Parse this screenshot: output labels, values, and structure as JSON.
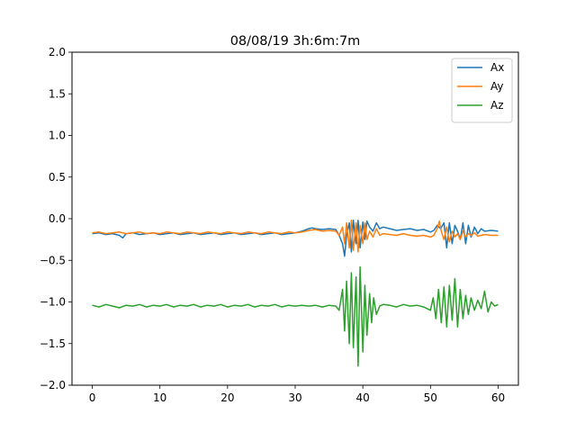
{
  "chart_data": {
    "type": "line",
    "title": "08/08/19 3h:6m:7m",
    "xlabel": "",
    "ylabel": "",
    "xlim": [
      -3,
      63
    ],
    "ylim": [
      -2.0,
      2.0
    ],
    "xticks": [
      0,
      10,
      20,
      30,
      40,
      50,
      60
    ],
    "xtick_labels": [
      "0",
      "10",
      "20",
      "30",
      "40",
      "50",
      "60"
    ],
    "yticks": [
      -2.0,
      -1.5,
      -1.0,
      -0.5,
      0.0,
      0.5,
      1.0,
      1.5,
      2.0
    ],
    "ytick_labels": [
      "−2.0",
      "−1.5",
      "−1.0",
      "−0.5",
      "0.0",
      "0.5",
      "1.0",
      "1.5",
      "2.0"
    ],
    "grid": false,
    "legend_position": "top-right",
    "series": [
      {
        "name": "Ax",
        "color": "#1f77b4",
        "x": [
          0,
          1,
          2,
          3,
          4,
          4.5,
          5,
          6,
          7,
          8,
          9,
          10,
          11,
          12,
          13,
          14,
          15,
          16,
          17,
          18,
          19,
          20,
          21,
          22,
          23,
          24,
          25,
          26,
          27,
          28,
          29,
          30,
          31,
          32,
          32.5,
          33,
          34,
          35,
          36,
          36.5,
          37,
          37.3,
          37.6,
          38,
          38.3,
          38.6,
          39,
          39.3,
          39.6,
          40,
          40.3,
          40.6,
          41,
          41.5,
          42,
          42.5,
          43,
          44,
          45,
          46,
          47,
          48,
          49,
          50,
          50.5,
          51,
          51.5,
          52,
          52.4,
          52.8,
          53.2,
          53.6,
          54,
          54.4,
          54.8,
          55.2,
          55.6,
          56,
          56.5,
          57,
          57.5,
          58,
          59,
          60
        ],
        "y": [
          -0.18,
          -0.17,
          -0.19,
          -0.18,
          -0.2,
          -0.23,
          -0.18,
          -0.17,
          -0.19,
          -0.18,
          -0.17,
          -0.19,
          -0.18,
          -0.17,
          -0.19,
          -0.18,
          -0.17,
          -0.19,
          -0.18,
          -0.17,
          -0.19,
          -0.18,
          -0.17,
          -0.19,
          -0.18,
          -0.17,
          -0.19,
          -0.18,
          -0.17,
          -0.19,
          -0.18,
          -0.17,
          -0.15,
          -0.12,
          -0.11,
          -0.12,
          -0.13,
          -0.12,
          -0.13,
          -0.2,
          -0.3,
          -0.45,
          -0.2,
          -0.05,
          -0.4,
          -0.02,
          -0.3,
          -0.02,
          -0.35,
          -0.04,
          -0.25,
          -0.03,
          -0.1,
          -0.15,
          -0.05,
          -0.12,
          -0.1,
          -0.12,
          -0.14,
          -0.13,
          -0.12,
          -0.14,
          -0.13,
          -0.16,
          -0.14,
          -0.08,
          -0.12,
          -0.05,
          -0.35,
          -0.05,
          -0.3,
          -0.08,
          -0.15,
          -0.25,
          -0.05,
          -0.3,
          -0.08,
          -0.22,
          -0.1,
          -0.18,
          -0.12,
          -0.15,
          -0.14,
          -0.15
        ]
      },
      {
        "name": "Ay",
        "color": "#ff7f0e",
        "x": [
          0,
          1,
          2,
          3,
          4,
          5,
          6,
          7,
          8,
          9,
          10,
          11,
          12,
          13,
          14,
          15,
          16,
          17,
          18,
          19,
          20,
          21,
          22,
          23,
          24,
          25,
          26,
          27,
          28,
          29,
          30,
          31,
          32,
          33,
          34,
          35,
          36,
          36.5,
          37,
          37.3,
          37.6,
          38,
          38.3,
          38.6,
          39,
          39.3,
          39.6,
          40,
          40.3,
          40.6,
          41,
          41.5,
          42,
          42.5,
          43,
          44,
          45,
          46,
          47,
          48,
          49,
          50,
          50.5,
          51,
          51.3,
          51.6,
          52,
          52.4,
          52.8,
          53.2,
          53.6,
          54,
          54.4,
          54.8,
          55.2,
          55.6,
          56,
          56.5,
          57,
          58,
          59,
          60
        ],
        "y": [
          -0.17,
          -0.16,
          -0.18,
          -0.17,
          -0.16,
          -0.18,
          -0.17,
          -0.16,
          -0.18,
          -0.17,
          -0.18,
          -0.16,
          -0.17,
          -0.18,
          -0.16,
          -0.17,
          -0.18,
          -0.16,
          -0.17,
          -0.18,
          -0.16,
          -0.17,
          -0.18,
          -0.16,
          -0.17,
          -0.18,
          -0.16,
          -0.17,
          -0.18,
          -0.16,
          -0.17,
          -0.16,
          -0.14,
          -0.13,
          -0.15,
          -0.14,
          -0.15,
          -0.2,
          -0.1,
          -0.3,
          -0.05,
          -0.35,
          -0.02,
          -0.38,
          -0.05,
          -0.4,
          -0.08,
          -0.3,
          -0.05,
          -0.25,
          -0.15,
          -0.22,
          -0.12,
          -0.2,
          -0.18,
          -0.19,
          -0.2,
          -0.18,
          -0.2,
          -0.21,
          -0.2,
          -0.22,
          -0.2,
          -0.12,
          -0.03,
          -0.15,
          -0.25,
          -0.1,
          -0.28,
          -0.15,
          -0.22,
          -0.18,
          -0.25,
          -0.15,
          -0.22,
          -0.18,
          -0.2,
          -0.17,
          -0.21,
          -0.19,
          -0.2,
          -0.2
        ]
      },
      {
        "name": "Az",
        "color": "#2ca02c",
        "x": [
          0,
          1,
          2,
          3,
          4,
          5,
          6,
          7,
          8,
          9,
          10,
          11,
          12,
          13,
          14,
          15,
          16,
          17,
          18,
          19,
          20,
          21,
          22,
          23,
          24,
          25,
          26,
          27,
          28,
          29,
          30,
          31,
          32,
          33,
          34,
          35,
          36,
          36.5,
          37,
          37.3,
          37.6,
          38,
          38.3,
          38.6,
          39,
          39.3,
          39.6,
          40,
          40.3,
          40.6,
          41,
          41.3,
          41.6,
          42,
          42.5,
          43,
          44,
          45,
          46,
          47,
          48,
          49,
          50,
          50.4,
          50.8,
          51.2,
          51.6,
          52,
          52.4,
          52.8,
          53.2,
          53.6,
          54,
          54.4,
          54.8,
          55.2,
          55.6,
          56,
          56.5,
          57,
          57.5,
          58,
          58.5,
          59,
          59.5,
          60
        ],
        "y": [
          -1.04,
          -1.06,
          -1.03,
          -1.05,
          -1.07,
          -1.04,
          -1.05,
          -1.03,
          -1.06,
          -1.04,
          -1.05,
          -1.03,
          -1.06,
          -1.04,
          -1.05,
          -1.03,
          -1.06,
          -1.04,
          -1.05,
          -1.03,
          -1.06,
          -1.04,
          -1.05,
          -1.03,
          -1.06,
          -1.04,
          -1.05,
          -1.03,
          -1.06,
          -1.04,
          -1.05,
          -1.04,
          -1.05,
          -1.04,
          -1.06,
          -1.04,
          -1.05,
          -1.1,
          -0.85,
          -1.35,
          -0.75,
          -1.5,
          -0.65,
          -1.55,
          -0.7,
          -1.77,
          -0.58,
          -1.6,
          -0.8,
          -1.4,
          -0.9,
          -1.25,
          -0.95,
          -1.15,
          -1.05,
          -1.03,
          -1.04,
          -1.06,
          -1.03,
          -1.05,
          -1.04,
          -1.06,
          -1.1,
          -0.95,
          -1.2,
          -0.85,
          -1.25,
          -0.82,
          -1.3,
          -0.8,
          -1.22,
          -0.72,
          -1.3,
          -0.85,
          -1.2,
          -0.92,
          -1.15,
          -0.95,
          -1.1,
          -0.98,
          -1.08,
          -0.87,
          -1.12,
          -1.0,
          -1.05,
          -1.03
        ]
      }
    ]
  }
}
